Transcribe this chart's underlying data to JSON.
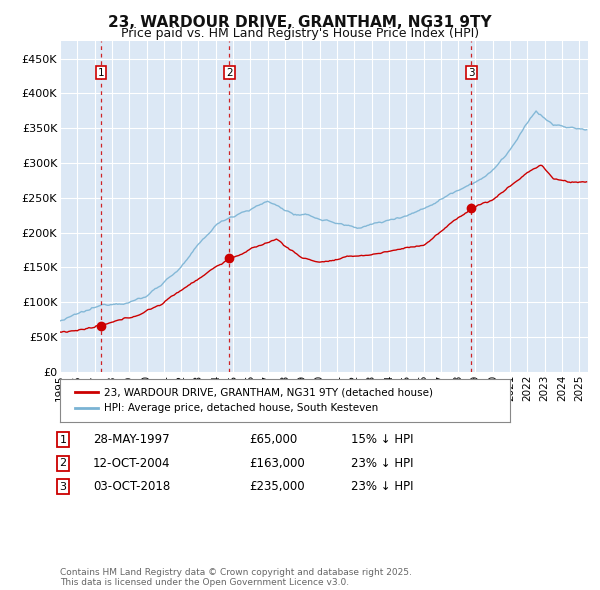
{
  "title": "23, WARDOUR DRIVE, GRANTHAM, NG31 9TY",
  "subtitle": "Price paid vs. HM Land Registry's House Price Index (HPI)",
  "ylim": [
    0,
    475000
  ],
  "xlim_start": 1995.0,
  "xlim_end": 2025.5,
  "yticks": [
    0,
    50000,
    100000,
    150000,
    200000,
    250000,
    300000,
    350000,
    400000,
    450000
  ],
  "ytick_labels": [
    "£0",
    "£50K",
    "£100K",
    "£150K",
    "£200K",
    "£250K",
    "£300K",
    "£350K",
    "£400K",
    "£450K"
  ],
  "xticks": [
    1995,
    1996,
    1997,
    1998,
    1999,
    2000,
    2001,
    2002,
    2003,
    2004,
    2005,
    2006,
    2007,
    2008,
    2009,
    2010,
    2011,
    2012,
    2013,
    2014,
    2015,
    2016,
    2017,
    2018,
    2019,
    2020,
    2021,
    2022,
    2023,
    2024,
    2025
  ],
  "sale_dates": [
    1997.38,
    2004.79,
    2018.76
  ],
  "sale_prices": [
    65000,
    163000,
    235000
  ],
  "sale_labels": [
    "1",
    "2",
    "3"
  ],
  "legend_line1": "23, WARDOUR DRIVE, GRANTHAM, NG31 9TY (detached house)",
  "legend_line2": "HPI: Average price, detached house, South Kesteven",
  "table_entries": [
    {
      "num": "1",
      "date": "28-MAY-1997",
      "price": "£65,000",
      "hpi": "15% ↓ HPI"
    },
    {
      "num": "2",
      "date": "12-OCT-2004",
      "price": "£163,000",
      "hpi": "23% ↓ HPI"
    },
    {
      "num": "3",
      "date": "03-OCT-2018",
      "price": "£235,000",
      "hpi": "23% ↓ HPI"
    }
  ],
  "footnote": "Contains HM Land Registry data © Crown copyright and database right 2025.\nThis data is licensed under the Open Government Licence v3.0.",
  "hpi_color": "#7ab3d4",
  "sale_color": "#cc0000",
  "bg_color": "#dce8f5",
  "grid_color": "#ffffff",
  "title_color": "#111111"
}
